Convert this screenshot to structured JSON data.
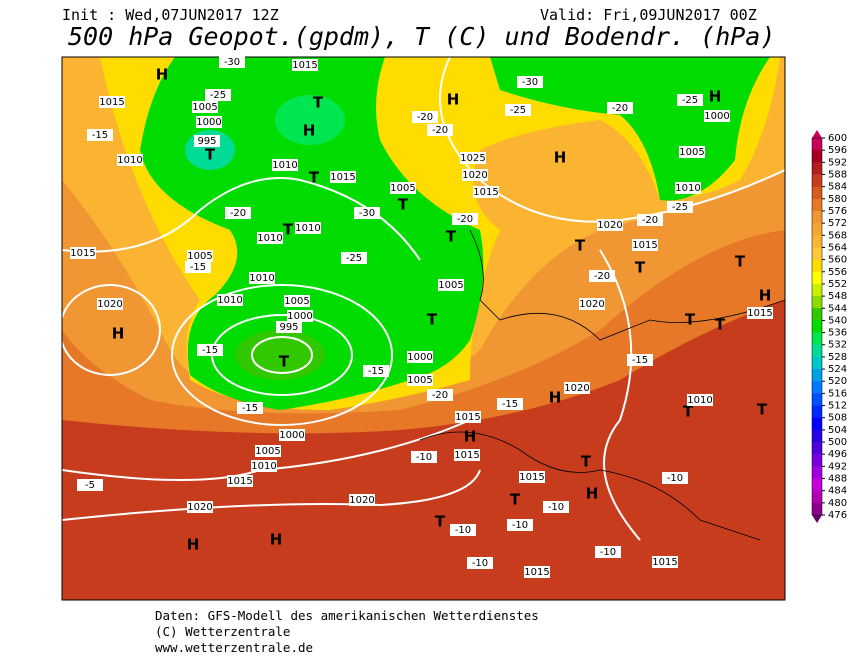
{
  "header": {
    "init": "Init : Wed,07JUN2017 12Z",
    "valid": "Valid: Fri,09JUN2017 00Z",
    "title": "500 hPa Geopot.(gpdm), T (C) und Bodendr. (hPa)"
  },
  "colorbar": {
    "ticks": [
      600,
      596,
      592,
      588,
      584,
      580,
      576,
      572,
      568,
      564,
      560,
      556,
      552,
      548,
      544,
      540,
      536,
      532,
      528,
      524,
      520,
      516,
      512,
      508,
      504,
      500,
      496,
      492,
      488,
      484,
      480,
      476
    ],
    "colors": [
      "#c8005a",
      "#a50021",
      "#b41e1e",
      "#c83c1e",
      "#d75a1e",
      "#e67828",
      "#f09632",
      "#f5a532",
      "#fab432",
      "#ffc83c",
      "#ffdc00",
      "#ffff00",
      "#c8f000",
      "#8cdc00",
      "#32c800",
      "#00dc00",
      "#00e650",
      "#00dc96",
      "#00c8c8",
      "#00a0e6",
      "#0078ff",
      "#0050ff",
      "#0028ff",
      "#0000ff",
      "#2800e6",
      "#5000dc",
      "#7800dc",
      "#a000dc",
      "#c800dc",
      "#b400b4",
      "#8c008c",
      "#640064"
    ]
  },
  "map_labels": [
    "H",
    "H",
    "H",
    "H",
    "H",
    "H",
    "H",
    "H",
    "H",
    "H",
    "H",
    "H",
    "T",
    "T",
    "T",
    "T",
    "T",
    "T",
    "T",
    "T",
    "T",
    "T",
    "T",
    "T",
    "T",
    "T",
    "T",
    "T",
    "T",
    "T",
    "1015",
    "1015",
    "1015",
    "1015",
    "1015",
    "1015",
    "1015",
    "1015",
    "1015",
    "1015",
    "1015",
    "1015",
    "1015",
    "1010",
    "1010",
    "1010",
    "1010",
    "1010",
    "1010",
    "1010",
    "1010",
    "1010",
    "1005",
    "1005",
    "1005",
    "1005",
    "1005",
    "1005",
    "1005",
    "1005",
    "1000",
    "1000",
    "1000",
    "1000",
    "1000",
    "1020",
    "1020",
    "1020",
    "1020",
    "1020",
    "1020",
    "1020",
    "1025",
    "995",
    "995",
    "-30",
    "-30",
    "-30",
    "-25",
    "-25",
    "-25",
    "-25",
    "-25",
    "-20",
    "-20",
    "-20",
    "-20",
    "-20",
    "-20",
    "-20",
    "-20",
    "-15",
    "-15",
    "-15",
    "-15",
    "-15",
    "-15",
    "-15",
    "-10",
    "-10",
    "-10",
    "-10",
    "-10",
    "-10",
    "-10",
    "-5"
  ],
  "footer": {
    "line1": "Daten: GFS-Modell des amerikanischen Wetterdienstes",
    "line2": "(C) Wetterzentrale",
    "line3": "www.wetterzentrale.de"
  }
}
